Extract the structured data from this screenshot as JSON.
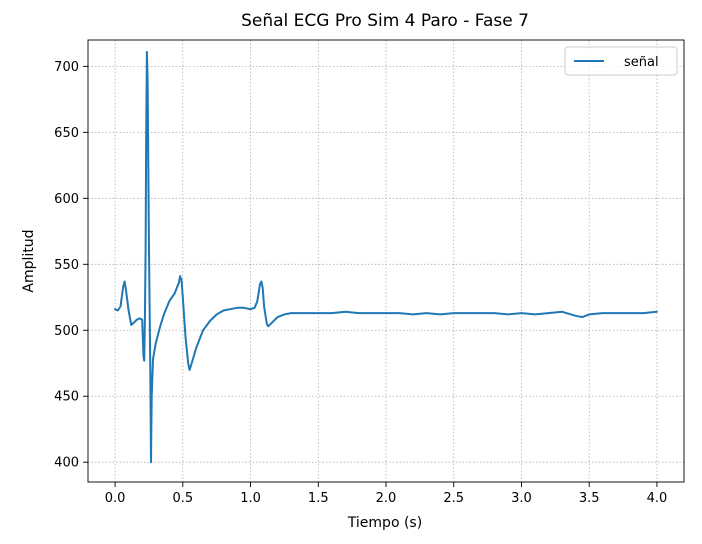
{
  "chart_data": {
    "type": "line",
    "title": "Señal ECG Pro Sim 4 Paro - Fase 7",
    "xlabel": "Tiempo (s)",
    "ylabel": "Amplitud",
    "xlim": [
      -0.2,
      4.2
    ],
    "ylim": [
      385,
      720
    ],
    "xticks": [
      0.0,
      0.5,
      1.0,
      1.5,
      2.0,
      2.5,
      3.0,
      3.5,
      4.0
    ],
    "xtick_labels": [
      "0.0",
      "0.5",
      "1.0",
      "1.5",
      "2.0",
      "2.5",
      "3.0",
      "3.5",
      "4.0"
    ],
    "yticks": [
      400,
      450,
      500,
      550,
      600,
      650,
      700
    ],
    "ytick_labels": [
      "400",
      "450",
      "500",
      "550",
      "600",
      "650",
      "700"
    ],
    "grid": true,
    "legend": "top-right",
    "series": [
      {
        "name": "señal",
        "color": "#1f77b4",
        "points": [
          [
            0.0,
            516
          ],
          [
            0.02,
            515
          ],
          [
            0.04,
            518
          ],
          [
            0.06,
            533
          ],
          [
            0.07,
            537
          ],
          [
            0.08,
            531
          ],
          [
            0.1,
            515
          ],
          [
            0.12,
            504
          ],
          [
            0.14,
            506
          ],
          [
            0.16,
            508
          ],
          [
            0.18,
            509
          ],
          [
            0.2,
            508
          ],
          [
            0.21,
            480
          ],
          [
            0.215,
            477
          ],
          [
            0.22,
            508
          ],
          [
            0.225,
            560
          ],
          [
            0.23,
            650
          ],
          [
            0.235,
            711
          ],
          [
            0.24,
            690
          ],
          [
            0.25,
            560
          ],
          [
            0.26,
            470
          ],
          [
            0.265,
            400
          ],
          [
            0.27,
            450
          ],
          [
            0.28,
            478
          ],
          [
            0.3,
            490
          ],
          [
            0.33,
            502
          ],
          [
            0.36,
            512
          ],
          [
            0.4,
            522
          ],
          [
            0.44,
            528
          ],
          [
            0.47,
            536
          ],
          [
            0.48,
            541
          ],
          [
            0.49,
            538
          ],
          [
            0.5,
            525
          ],
          [
            0.52,
            495
          ],
          [
            0.54,
            475
          ],
          [
            0.55,
            470
          ],
          [
            0.56,
            473
          ],
          [
            0.6,
            487
          ],
          [
            0.65,
            500
          ],
          [
            0.7,
            507
          ],
          [
            0.75,
            512
          ],
          [
            0.8,
            515
          ],
          [
            0.85,
            516
          ],
          [
            0.9,
            517
          ],
          [
            0.95,
            517
          ],
          [
            1.0,
            516
          ],
          [
            1.03,
            517
          ],
          [
            1.05,
            522
          ],
          [
            1.07,
            535
          ],
          [
            1.08,
            537
          ],
          [
            1.09,
            532
          ],
          [
            1.1,
            518
          ],
          [
            1.12,
            505
          ],
          [
            1.13,
            503
          ],
          [
            1.15,
            505
          ],
          [
            1.18,
            508
          ],
          [
            1.2,
            510
          ],
          [
            1.25,
            512
          ],
          [
            1.3,
            513
          ],
          [
            1.4,
            513
          ],
          [
            1.5,
            513
          ],
          [
            1.6,
            513
          ],
          [
            1.7,
            514
          ],
          [
            1.8,
            513
          ],
          [
            1.9,
            513
          ],
          [
            2.0,
            513
          ],
          [
            2.1,
            513
          ],
          [
            2.2,
            512
          ],
          [
            2.3,
            513
          ],
          [
            2.4,
            512
          ],
          [
            2.5,
            513
          ],
          [
            2.6,
            513
          ],
          [
            2.7,
            513
          ],
          [
            2.8,
            513
          ],
          [
            2.9,
            512
          ],
          [
            3.0,
            513
          ],
          [
            3.1,
            512
          ],
          [
            3.2,
            513
          ],
          [
            3.3,
            514
          ],
          [
            3.4,
            511
          ],
          [
            3.45,
            510
          ],
          [
            3.5,
            512
          ],
          [
            3.6,
            513
          ],
          [
            3.7,
            513
          ],
          [
            3.8,
            513
          ],
          [
            3.9,
            513
          ],
          [
            4.0,
            514
          ]
        ]
      }
    ]
  }
}
